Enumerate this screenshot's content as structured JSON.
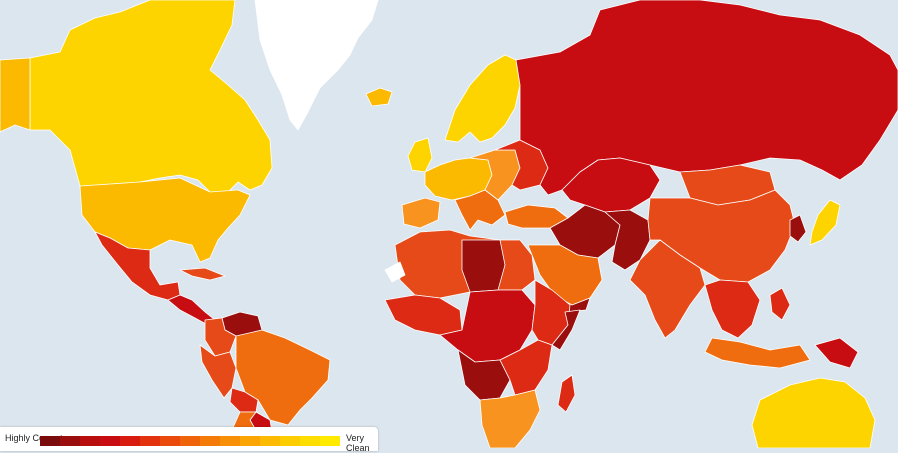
{
  "map": {
    "ocean_color": "#dce6ee",
    "palette": {
      "very_clean": "#fdd400",
      "clean": "#fbb900",
      "mid_high": "#f7931e",
      "mid": "#ef6d0e",
      "mid_low": "#e64a19",
      "corrupt": "#dc2a14",
      "very_corrupt": "#c80d12",
      "highly_corrupt": "#9b0e0e",
      "no_data": "#ffffff"
    }
  },
  "legend": {
    "low_label": "Highly Corrupt",
    "high_label": "Very Clean",
    "scale_colors": [
      "#7a0c0c",
      "#9b0e0e",
      "#b80e0e",
      "#c80d12",
      "#d81c10",
      "#e2320e",
      "#ea4a0c",
      "#ef640a",
      "#f47b08",
      "#f79006",
      "#faa504",
      "#fcbb02",
      "#fdcd00",
      "#fedd00",
      "#ffea00"
    ]
  }
}
